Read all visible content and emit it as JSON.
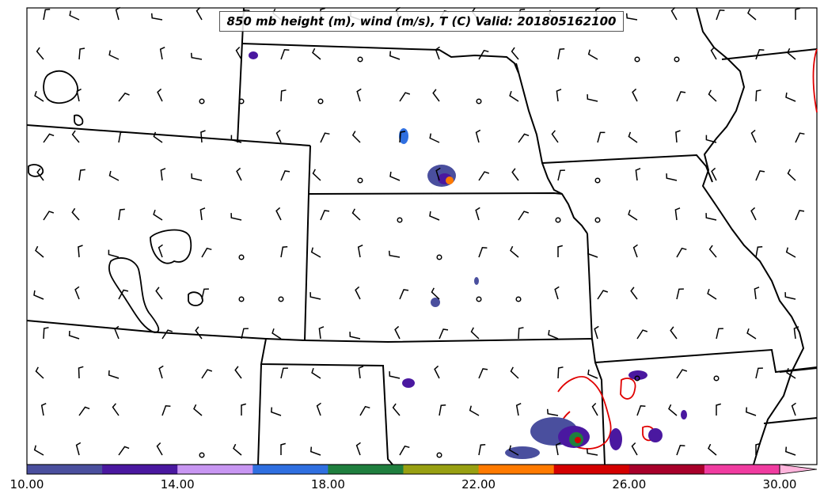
{
  "map": {
    "title": "850 mb height (m), wind (m/s), T (C) Valid: 201805162100",
    "contour_color": "#e00000",
    "barb_color": "#000000"
  },
  "colorbar": {
    "min": 10.0,
    "max": 30.0,
    "has_extend_arrow": true,
    "colors": [
      "#4a4f9e",
      "#4a18a0",
      "#c896f2",
      "#2f6fe0",
      "#1f7f3e",
      "#98a012",
      "#ff7a00",
      "#d40000",
      "#a8002a",
      "#f03ca0",
      "#ffb4dc"
    ],
    "tick_labels": [
      "10.00",
      "14.00",
      "18.00",
      "22.00",
      "26.00",
      "30.00"
    ]
  },
  "icons": {
    "barb": "wind-barb-icon",
    "calm": "calm-wind-circle-icon"
  }
}
